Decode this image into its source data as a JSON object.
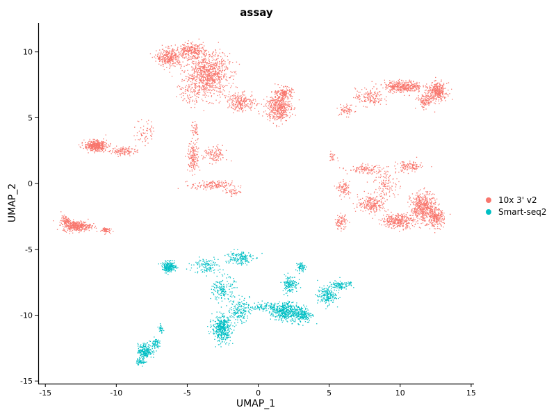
{
  "chart_data": {
    "type": "scatter",
    "title": "assay",
    "xlabel": "UMAP_1",
    "ylabel": "UMAP_2",
    "xlim": [
      -15.5,
      15.2
    ],
    "ylim": [
      -15.2,
      12.2
    ],
    "x_ticks": [
      -15,
      -10,
      -5,
      0,
      5,
      10,
      15
    ],
    "x_tick_labels": [
      "-15",
      "-10",
      "-5",
      "0",
      "5",
      "10",
      "15"
    ],
    "y_ticks": [
      -15,
      -10,
      -5,
      0,
      5,
      10
    ],
    "y_tick_labels": [
      "-15",
      "-10",
      "-5",
      "0",
      "5",
      "10"
    ],
    "grid": false,
    "legend_position": "right",
    "series": [
      {
        "name": "10x 3' v2",
        "color": "#F8766D",
        "clusters": [
          {
            "cx": -3.6,
            "cy": 8.3,
            "sx": 1.4,
            "sy": 1.5,
            "n": 900
          },
          {
            "cx": -6.3,
            "cy": 9.6,
            "sx": 0.8,
            "sy": 0.6,
            "n": 300
          },
          {
            "cx": -4.8,
            "cy": 10.1,
            "sx": 0.9,
            "sy": 0.5,
            "n": 250
          },
          {
            "cx": -1.2,
            "cy": 6.2,
            "sx": 0.9,
            "sy": 0.6,
            "n": 230
          },
          {
            "cx": 1.4,
            "cy": 5.8,
            "sx": 0.8,
            "sy": 0.9,
            "n": 450
          },
          {
            "cx": 1.8,
            "cy": 6.9,
            "sx": 0.5,
            "sy": 0.4,
            "n": 150
          },
          {
            "cx": -11.5,
            "cy": 2.9,
            "sx": 0.7,
            "sy": 0.35,
            "n": 420
          },
          {
            "cx": -9.5,
            "cy": 2.5,
            "sx": 0.8,
            "sy": 0.3,
            "n": 120
          },
          {
            "cx": -8.0,
            "cy": 4.0,
            "sx": 0.6,
            "sy": 0.9,
            "n": 60
          },
          {
            "cx": -4.9,
            "cy": 7.0,
            "sx": 0.6,
            "sy": 1.0,
            "n": 70
          },
          {
            "cx": -4.6,
            "cy": 2.0,
            "sx": 0.35,
            "sy": 1.0,
            "n": 160
          },
          {
            "cx": -3.1,
            "cy": 2.2,
            "sx": 0.7,
            "sy": 0.6,
            "n": 120
          },
          {
            "cx": -3.3,
            "cy": -0.1,
            "sx": 1.3,
            "sy": 0.3,
            "n": 160
          },
          {
            "cx": -1.8,
            "cy": -0.6,
            "sx": 0.5,
            "sy": 0.25,
            "n": 40
          },
          {
            "cx": -4.5,
            "cy": 4.2,
            "sx": 0.3,
            "sy": 0.8,
            "n": 40
          },
          {
            "cx": -12.8,
            "cy": -3.2,
            "sx": 0.9,
            "sy": 0.35,
            "n": 360
          },
          {
            "cx": -13.6,
            "cy": -2.8,
            "sx": 0.3,
            "sy": 0.35,
            "n": 80
          },
          {
            "cx": -10.8,
            "cy": -3.5,
            "sx": 0.3,
            "sy": 0.2,
            "n": 60
          },
          {
            "cx": 7.8,
            "cy": 6.6,
            "sx": 0.9,
            "sy": 0.6,
            "n": 150
          },
          {
            "cx": 10.2,
            "cy": 7.4,
            "sx": 1.2,
            "sy": 0.4,
            "n": 380
          },
          {
            "cx": 12.6,
            "cy": 7.0,
            "sx": 0.6,
            "sy": 0.6,
            "n": 320
          },
          {
            "cx": 6.2,
            "cy": 5.6,
            "sx": 0.5,
            "sy": 0.4,
            "n": 60
          },
          {
            "cx": 11.7,
            "cy": 6.3,
            "sx": 0.5,
            "sy": 0.5,
            "n": 120
          },
          {
            "cx": 11.6,
            "cy": -1.8,
            "sx": 0.8,
            "sy": 1.0,
            "n": 500
          },
          {
            "cx": 9.8,
            "cy": -2.8,
            "sx": 1.0,
            "sy": 0.5,
            "n": 320
          },
          {
            "cx": 12.5,
            "cy": -2.6,
            "sx": 0.5,
            "sy": 0.6,
            "n": 220
          },
          {
            "cx": 8.0,
            "cy": -1.5,
            "sx": 0.9,
            "sy": 0.6,
            "n": 220
          },
          {
            "cx": 6.0,
            "cy": -0.4,
            "sx": 0.4,
            "sy": 0.5,
            "n": 90
          },
          {
            "cx": 5.8,
            "cy": -2.9,
            "sx": 0.4,
            "sy": 0.5,
            "n": 90
          },
          {
            "cx": 7.5,
            "cy": 1.1,
            "sx": 1.1,
            "sy": 0.3,
            "n": 110
          },
          {
            "cx": 10.6,
            "cy": 1.3,
            "sx": 0.8,
            "sy": 0.4,
            "n": 120
          },
          {
            "cx": 5.2,
            "cy": 2.1,
            "sx": 0.3,
            "sy": 0.3,
            "n": 25
          },
          {
            "cx": 9.0,
            "cy": 0.0,
            "sx": 0.8,
            "sy": 1.0,
            "n": 120
          }
        ]
      },
      {
        "name": "Smart-seq2",
        "color": "#00BFC4",
        "clusters": [
          {
            "cx": -6.3,
            "cy": -6.3,
            "sx": 0.45,
            "sy": 0.35,
            "n": 220
          },
          {
            "cx": -3.7,
            "cy": -6.2,
            "sx": 0.8,
            "sy": 0.5,
            "n": 120
          },
          {
            "cx": -1.4,
            "cy": -5.6,
            "sx": 0.9,
            "sy": 0.5,
            "n": 160
          },
          {
            "cx": -2.5,
            "cy": -8.0,
            "sx": 0.7,
            "sy": 0.9,
            "n": 160
          },
          {
            "cx": -2.6,
            "cy": -11.0,
            "sx": 0.6,
            "sy": 0.9,
            "n": 420
          },
          {
            "cx": -1.3,
            "cy": -9.6,
            "sx": 0.6,
            "sy": 0.8,
            "n": 160
          },
          {
            "cx": 0.3,
            "cy": -9.3,
            "sx": 0.8,
            "sy": 0.3,
            "n": 90
          },
          {
            "cx": 1.8,
            "cy": -9.7,
            "sx": 0.8,
            "sy": 0.6,
            "n": 400
          },
          {
            "cx": 3.0,
            "cy": -9.9,
            "sx": 0.7,
            "sy": 0.6,
            "n": 240
          },
          {
            "cx": 2.2,
            "cy": -7.6,
            "sx": 0.5,
            "sy": 0.6,
            "n": 140
          },
          {
            "cx": 3.0,
            "cy": -6.3,
            "sx": 0.25,
            "sy": 0.3,
            "n": 60
          },
          {
            "cx": 4.8,
            "cy": -8.5,
            "sx": 0.6,
            "sy": 0.6,
            "n": 180
          },
          {
            "cx": 5.6,
            "cy": -7.7,
            "sx": 0.6,
            "sy": 0.3,
            "n": 100
          },
          {
            "cx": 6.4,
            "cy": -7.6,
            "sx": 0.15,
            "sy": 0.15,
            "n": 15
          },
          {
            "cx": -8.0,
            "cy": -12.7,
            "sx": 0.45,
            "sy": 0.5,
            "n": 230
          },
          {
            "cx": -7.3,
            "cy": -12.1,
            "sx": 0.25,
            "sy": 0.35,
            "n": 70
          },
          {
            "cx": -6.9,
            "cy": -11.0,
            "sx": 0.15,
            "sy": 0.4,
            "n": 30
          },
          {
            "cx": -8.3,
            "cy": -13.5,
            "sx": 0.3,
            "sy": 0.2,
            "n": 50
          }
        ]
      }
    ]
  }
}
